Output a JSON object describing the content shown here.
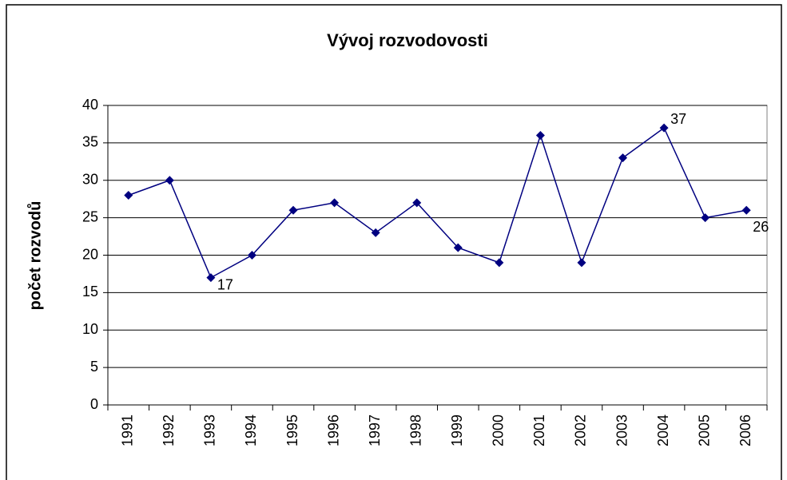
{
  "chart_data": {
    "type": "line",
    "title": "Vývoj rozvodovosti",
    "y_label": "počet rozvodů",
    "categories": [
      "1991",
      "1992",
      "1993",
      "1994",
      "1995",
      "1996",
      "1997",
      "1998",
      "1999",
      "2000",
      "2001",
      "2002",
      "2003",
      "2004",
      "2005",
      "2006"
    ],
    "series": [
      {
        "name": "počet rozvodů",
        "color": "#000080",
        "values": [
          28,
          30,
          17,
          20,
          26,
          27,
          23,
          27,
          21,
          19,
          36,
          19,
          33,
          37,
          25,
          26
        ],
        "value_labels": [
          null,
          null,
          "17",
          null,
          null,
          null,
          null,
          null,
          null,
          null,
          null,
          null,
          null,
          "37",
          null,
          "26"
        ]
      }
    ],
    "ylim": [
      0,
      40
    ],
    "yticks": [
      0,
      5,
      10,
      15,
      20,
      25,
      30,
      35,
      40
    ],
    "grid": true,
    "legend": false
  }
}
